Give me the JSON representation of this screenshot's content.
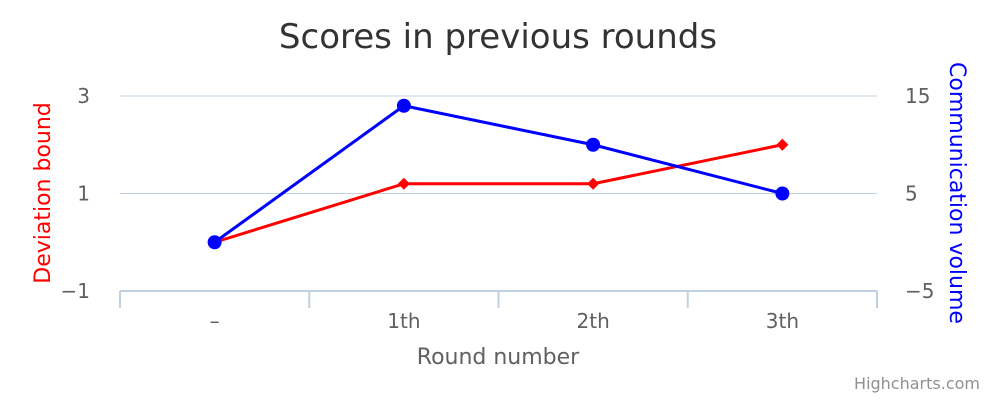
{
  "chart_data": {
    "type": "line",
    "title": "Scores in previous rounds",
    "xlabel": "Round number",
    "categories": [
      "–",
      "1th",
      "2th",
      "3th"
    ],
    "y_left": {
      "label": "Deviation bound",
      "range": [
        -1,
        3
      ],
      "ticks": [
        "3",
        "1",
        "−1"
      ],
      "tick_values": [
        3,
        1,
        -1
      ],
      "color": "#ff0000"
    },
    "y_right": {
      "label": "Communication volume",
      "range": [
        -5,
        15
      ],
      "ticks": [
        "15",
        "5",
        "−5"
      ],
      "tick_values": [
        15,
        5,
        -5
      ],
      "color": "#0000ff"
    },
    "series": [
      {
        "axis": "left",
        "values": [
          0,
          1.2,
          1.2,
          2
        ],
        "color": "#ff0000",
        "marker": "diamond"
      },
      {
        "axis": "right",
        "values": [
          0,
          14,
          10,
          5
        ],
        "color": "#0000ff",
        "marker": "circle"
      }
    ],
    "grid": true,
    "credit": "Highcharts.com"
  }
}
